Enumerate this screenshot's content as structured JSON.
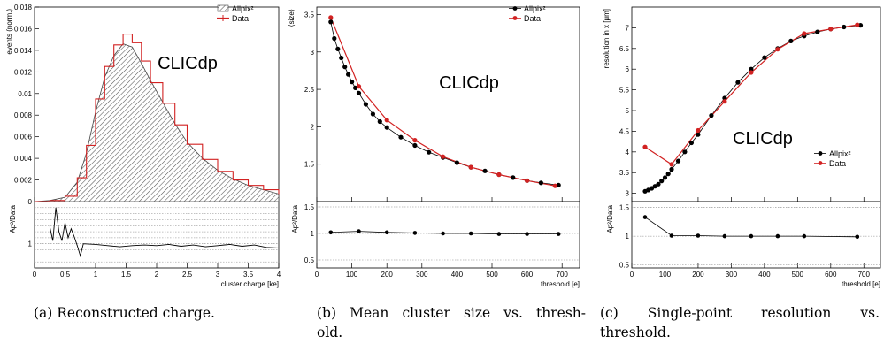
{
  "captions": [
    {
      "line1": "(a) Reconstructed charge.",
      "line2": ""
    },
    {
      "line1": "(b) Mean cluster size vs. thresh-",
      "line2": "old."
    },
    {
      "line1": "(c) Single-point resolution vs.",
      "line2": "threshold."
    }
  ],
  "colors": {
    "allpix": "#000000",
    "data": "#d22222",
    "grid": "#888888"
  },
  "chart_data": [
    {
      "id": "a",
      "type": "line",
      "title": "",
      "watermark": "CLICdp",
      "xlabel": "cluster charge [ke]",
      "ylabel": "events (norm.)",
      "ratio_ylabel": "Ap²/Data",
      "xlim": [
        0,
        4
      ],
      "ylim": [
        0,
        0.018
      ],
      "ratio_ylim": [
        0.6,
        1.7
      ],
      "xticks": [
        "0",
        "0.5",
        "1",
        "1.5",
        "2",
        "2.5",
        "3",
        "3.5",
        "4"
      ],
      "yticks": [
        "0",
        "0.002",
        "0.004",
        "0.006",
        "0.008",
        "0.01",
        "0.012",
        "0.014",
        "0.016",
        "0.018"
      ],
      "ratio_yticks": [
        "1"
      ],
      "legend": {
        "position": "top-right",
        "entries": [
          {
            "label": "Allpix²",
            "style": "hatched"
          },
          {
            "label": "Data",
            "style": "line"
          }
        ]
      },
      "series": [
        {
          "name": "Allpix²",
          "style": "hatched-histogram",
          "x": [
            0,
            0.25,
            0.5,
            0.7,
            0.85,
            1.0,
            1.15,
            1.3,
            1.45,
            1.6,
            1.75,
            1.9,
            2.1,
            2.3,
            2.5,
            2.75,
            3.0,
            3.25,
            3.5,
            3.75,
            4.0
          ],
          "values": [
            0,
            0.0001,
            0.0004,
            0.0018,
            0.0045,
            0.0083,
            0.0115,
            0.0135,
            0.0146,
            0.0143,
            0.0128,
            0.0112,
            0.0092,
            0.0072,
            0.0055,
            0.004,
            0.0029,
            0.0021,
            0.0015,
            0.0011,
            0.0007
          ]
        },
        {
          "name": "Data",
          "style": "step",
          "x": [
            0,
            0.25,
            0.5,
            0.7,
            0.85,
            1.0,
            1.15,
            1.3,
            1.45,
            1.6,
            1.75,
            1.9,
            2.1,
            2.3,
            2.5,
            2.75,
            3.0,
            3.25,
            3.5,
            3.75,
            4.0
          ],
          "values": [
            0,
            0.0001,
            0.0005,
            0.0022,
            0.0052,
            0.0095,
            0.0125,
            0.0145,
            0.0155,
            0.0147,
            0.013,
            0.011,
            0.0091,
            0.0071,
            0.0053,
            0.0039,
            0.0028,
            0.002,
            0.0015,
            0.0011,
            0.0007
          ]
        }
      ],
      "ratio": {
        "x": [
          0.25,
          0.3,
          0.35,
          0.4,
          0.45,
          0.5,
          0.55,
          0.6,
          0.65,
          0.7,
          0.75,
          0.8,
          1.0,
          1.2,
          1.4,
          1.6,
          1.8,
          2.0,
          2.2,
          2.4,
          2.6,
          2.8,
          3.0,
          3.2,
          3.4,
          3.6,
          3.8,
          4.0
        ],
        "values": [
          1.28,
          1.05,
          1.6,
          1.2,
          1.05,
          1.35,
          1.1,
          1.25,
          1.12,
          0.97,
          0.8,
          1.0,
          0.99,
          0.97,
          0.95,
          0.97,
          0.98,
          0.97,
          0.99,
          0.96,
          0.98,
          0.95,
          0.97,
          0.99,
          0.96,
          0.98,
          0.94,
          0.93
        ]
      }
    },
    {
      "id": "b",
      "type": "line",
      "title": "",
      "watermark": "CLICdp",
      "xlabel": "threshold [e]",
      "ylabel": "⟨size⟩",
      "ratio_ylabel": "Ap²/Data",
      "xlim": [
        0,
        750
      ],
      "ylim": [
        1.0,
        3.6
      ],
      "ratio_ylim": [
        0.35,
        1.6
      ],
      "xticks": [
        "0",
        "100",
        "200",
        "300",
        "400",
        "500",
        "600",
        "700"
      ],
      "yticks": [
        "1.5",
        "2",
        "2.5",
        "3",
        "3.5"
      ],
      "ratio_yticks": [
        "0.5",
        "1",
        "1.5"
      ],
      "legend": {
        "position": "top-right",
        "entries": [
          {
            "label": "Allpix²",
            "style": "black-dot"
          },
          {
            "label": "Data",
            "style": "red-dot"
          }
        ]
      },
      "series": [
        {
          "name": "Allpix²",
          "x": [
            40,
            50,
            60,
            70,
            80,
            90,
            100,
            110,
            120,
            140,
            160,
            180,
            200,
            240,
            280,
            320,
            360,
            400,
            440,
            480,
            520,
            560,
            600,
            640,
            690
          ],
          "values": [
            3.4,
            3.18,
            3.04,
            2.92,
            2.8,
            2.7,
            2.6,
            2.52,
            2.45,
            2.3,
            2.17,
            2.07,
            1.99,
            1.86,
            1.75,
            1.66,
            1.59,
            1.52,
            1.46,
            1.41,
            1.36,
            1.32,
            1.28,
            1.25,
            1.22
          ]
        },
        {
          "name": "Data",
          "x": [
            40,
            120,
            200,
            280,
            360,
            440,
            520,
            600,
            680
          ],
          "values": [
            3.46,
            2.54,
            2.09,
            1.82,
            1.6,
            1.46,
            1.36,
            1.28,
            1.21
          ]
        }
      ],
      "ratio": {
        "x": [
          40,
          120,
          200,
          280,
          360,
          440,
          520,
          600,
          690
        ],
        "values": [
          1.02,
          1.04,
          1.02,
          1.01,
          1.0,
          1.0,
          0.99,
          0.99,
          0.99
        ]
      }
    },
    {
      "id": "c",
      "type": "line",
      "title": "",
      "watermark": "CLICdp",
      "xlabel": "threshold [e]",
      "ylabel": "resolution in x [μm]",
      "ratio_ylabel": "Ap²/Data",
      "xlim": [
        0,
        750
      ],
      "ylim": [
        2.8,
        7.5
      ],
      "ratio_ylim": [
        0.45,
        1.6
      ],
      "xticks": [
        "0",
        "100",
        "200",
        "300",
        "400",
        "500",
        "600",
        "700"
      ],
      "yticks": [
        "3",
        "3.5",
        "4",
        "4.5",
        "5",
        "5.5",
        "6",
        "6.5",
        "7"
      ],
      "ratio_yticks": [
        "0.5",
        "1",
        "1.5"
      ],
      "legend": {
        "position": "right",
        "entries": [
          {
            "label": "Allpix²",
            "style": "black-dot"
          },
          {
            "label": "Data",
            "style": "red-dot"
          }
        ]
      },
      "series": [
        {
          "name": "Allpix²",
          "x": [
            40,
            50,
            60,
            70,
            80,
            90,
            100,
            110,
            120,
            140,
            160,
            180,
            200,
            240,
            280,
            320,
            360,
            400,
            440,
            480,
            520,
            560,
            600,
            640,
            690
          ],
          "values": [
            3.05,
            3.08,
            3.12,
            3.17,
            3.22,
            3.3,
            3.38,
            3.47,
            3.58,
            3.78,
            4.0,
            4.22,
            4.42,
            4.88,
            5.3,
            5.68,
            6.0,
            6.28,
            6.5,
            6.68,
            6.8,
            6.9,
            6.97,
            7.02,
            7.06
          ]
        },
        {
          "name": "Data",
          "x": [
            40,
            120,
            200,
            280,
            360,
            440,
            520,
            600,
            680
          ],
          "values": [
            4.12,
            3.7,
            4.52,
            5.22,
            5.92,
            6.48,
            6.86,
            6.97,
            7.07
          ]
        }
      ],
      "ratio": {
        "x": [
          40,
          120,
          200,
          280,
          360,
          440,
          520,
          680
        ],
        "values": [
          1.33,
          1.01,
          1.01,
          1.0,
          1.0,
          1.0,
          1.0,
          0.99
        ]
      }
    }
  ]
}
